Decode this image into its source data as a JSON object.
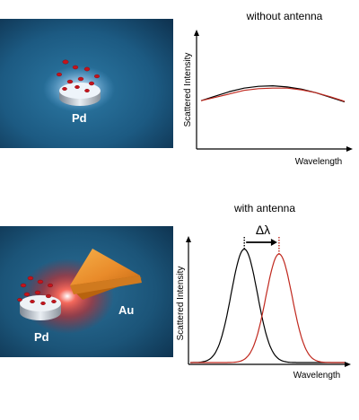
{
  "top_panel": {
    "image_label": "Pd",
    "chart_title": "without antenna",
    "ylabel": "Scattered Intensity",
    "xlabel": "Wavelength"
  },
  "bottom_panel": {
    "image_label_pd": "Pd",
    "image_label_au": "Au",
    "chart_title": "with antenna",
    "ylabel": "Scattered Intensity",
    "xlabel": "Wavelength",
    "shift_symbol": "Δλ"
  },
  "colors": {
    "background_blue": "#1f5f86",
    "particle_red": "#c4141c",
    "curve_black": "#000000",
    "curve_red": "#c0281e",
    "gold": "#e98b2a"
  },
  "chart_data": [
    {
      "type": "line",
      "title": "without antenna",
      "xlabel": "Wavelength",
      "ylabel": "Scattered Intensity",
      "x": [
        0,
        0.1,
        0.2,
        0.3,
        0.4,
        0.5,
        0.6,
        0.7,
        0.8,
        0.9,
        1.0
      ],
      "series": [
        {
          "values": [
            0.42,
            0.46,
            0.5,
            0.53,
            0.545,
            0.55,
            0.54,
            0.52,
            0.49,
            0.45,
            0.41
          ]
        },
        {
          "values": [
            0.42,
            0.45,
            0.48,
            0.51,
            0.525,
            0.53,
            0.53,
            0.515,
            0.49,
            0.455,
            0.415
          ]
        }
      ]
    },
    {
      "type": "line",
      "title": "with antenna",
      "xlabel": "Wavelength",
      "ylabel": "Scattered Intensity",
      "peaks": [
        {
          "center": 0.35,
          "width": 0.085,
          "height": 0.93
        },
        {
          "center": 0.575,
          "width": 0.085,
          "height": 0.89
        }
      ]
    }
  ]
}
